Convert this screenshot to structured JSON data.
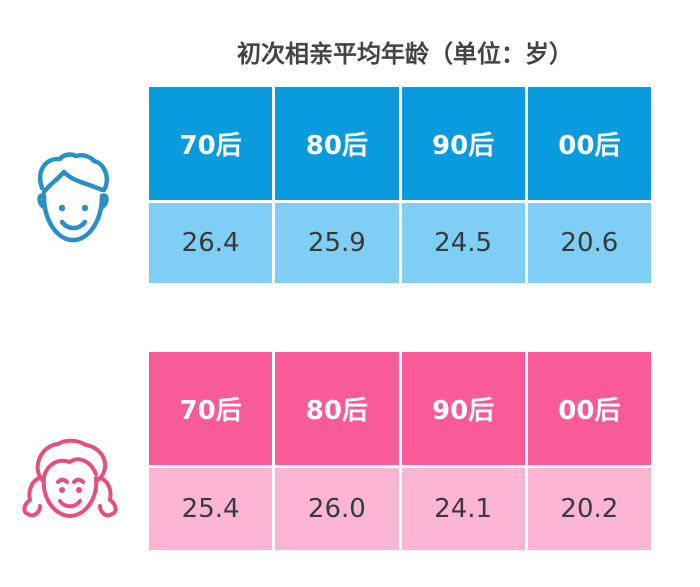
{
  "title": "初次相亲平均年龄（单位：岁）",
  "colors": {
    "male_header": "#0a9bdf",
    "male_value": "#7fcef5",
    "female_header": "#f95b99",
    "female_value": "#fcb6d3",
    "male_icon": "#2a8fc6",
    "female_icon": "#e4507a"
  },
  "icons": {
    "male": "boy-face-icon",
    "female": "girl-face-icon"
  },
  "chart_data": {
    "type": "table",
    "title": "初次相亲平均年龄（单位：岁）",
    "categories": [
      "70后",
      "80后",
      "90后",
      "00后"
    ],
    "series": [
      {
        "values": [
          26.4,
          25.9,
          24.5,
          20.6
        ]
      },
      {
        "values": [
          25.4,
          26.0,
          24.1,
          20.2
        ]
      }
    ]
  }
}
